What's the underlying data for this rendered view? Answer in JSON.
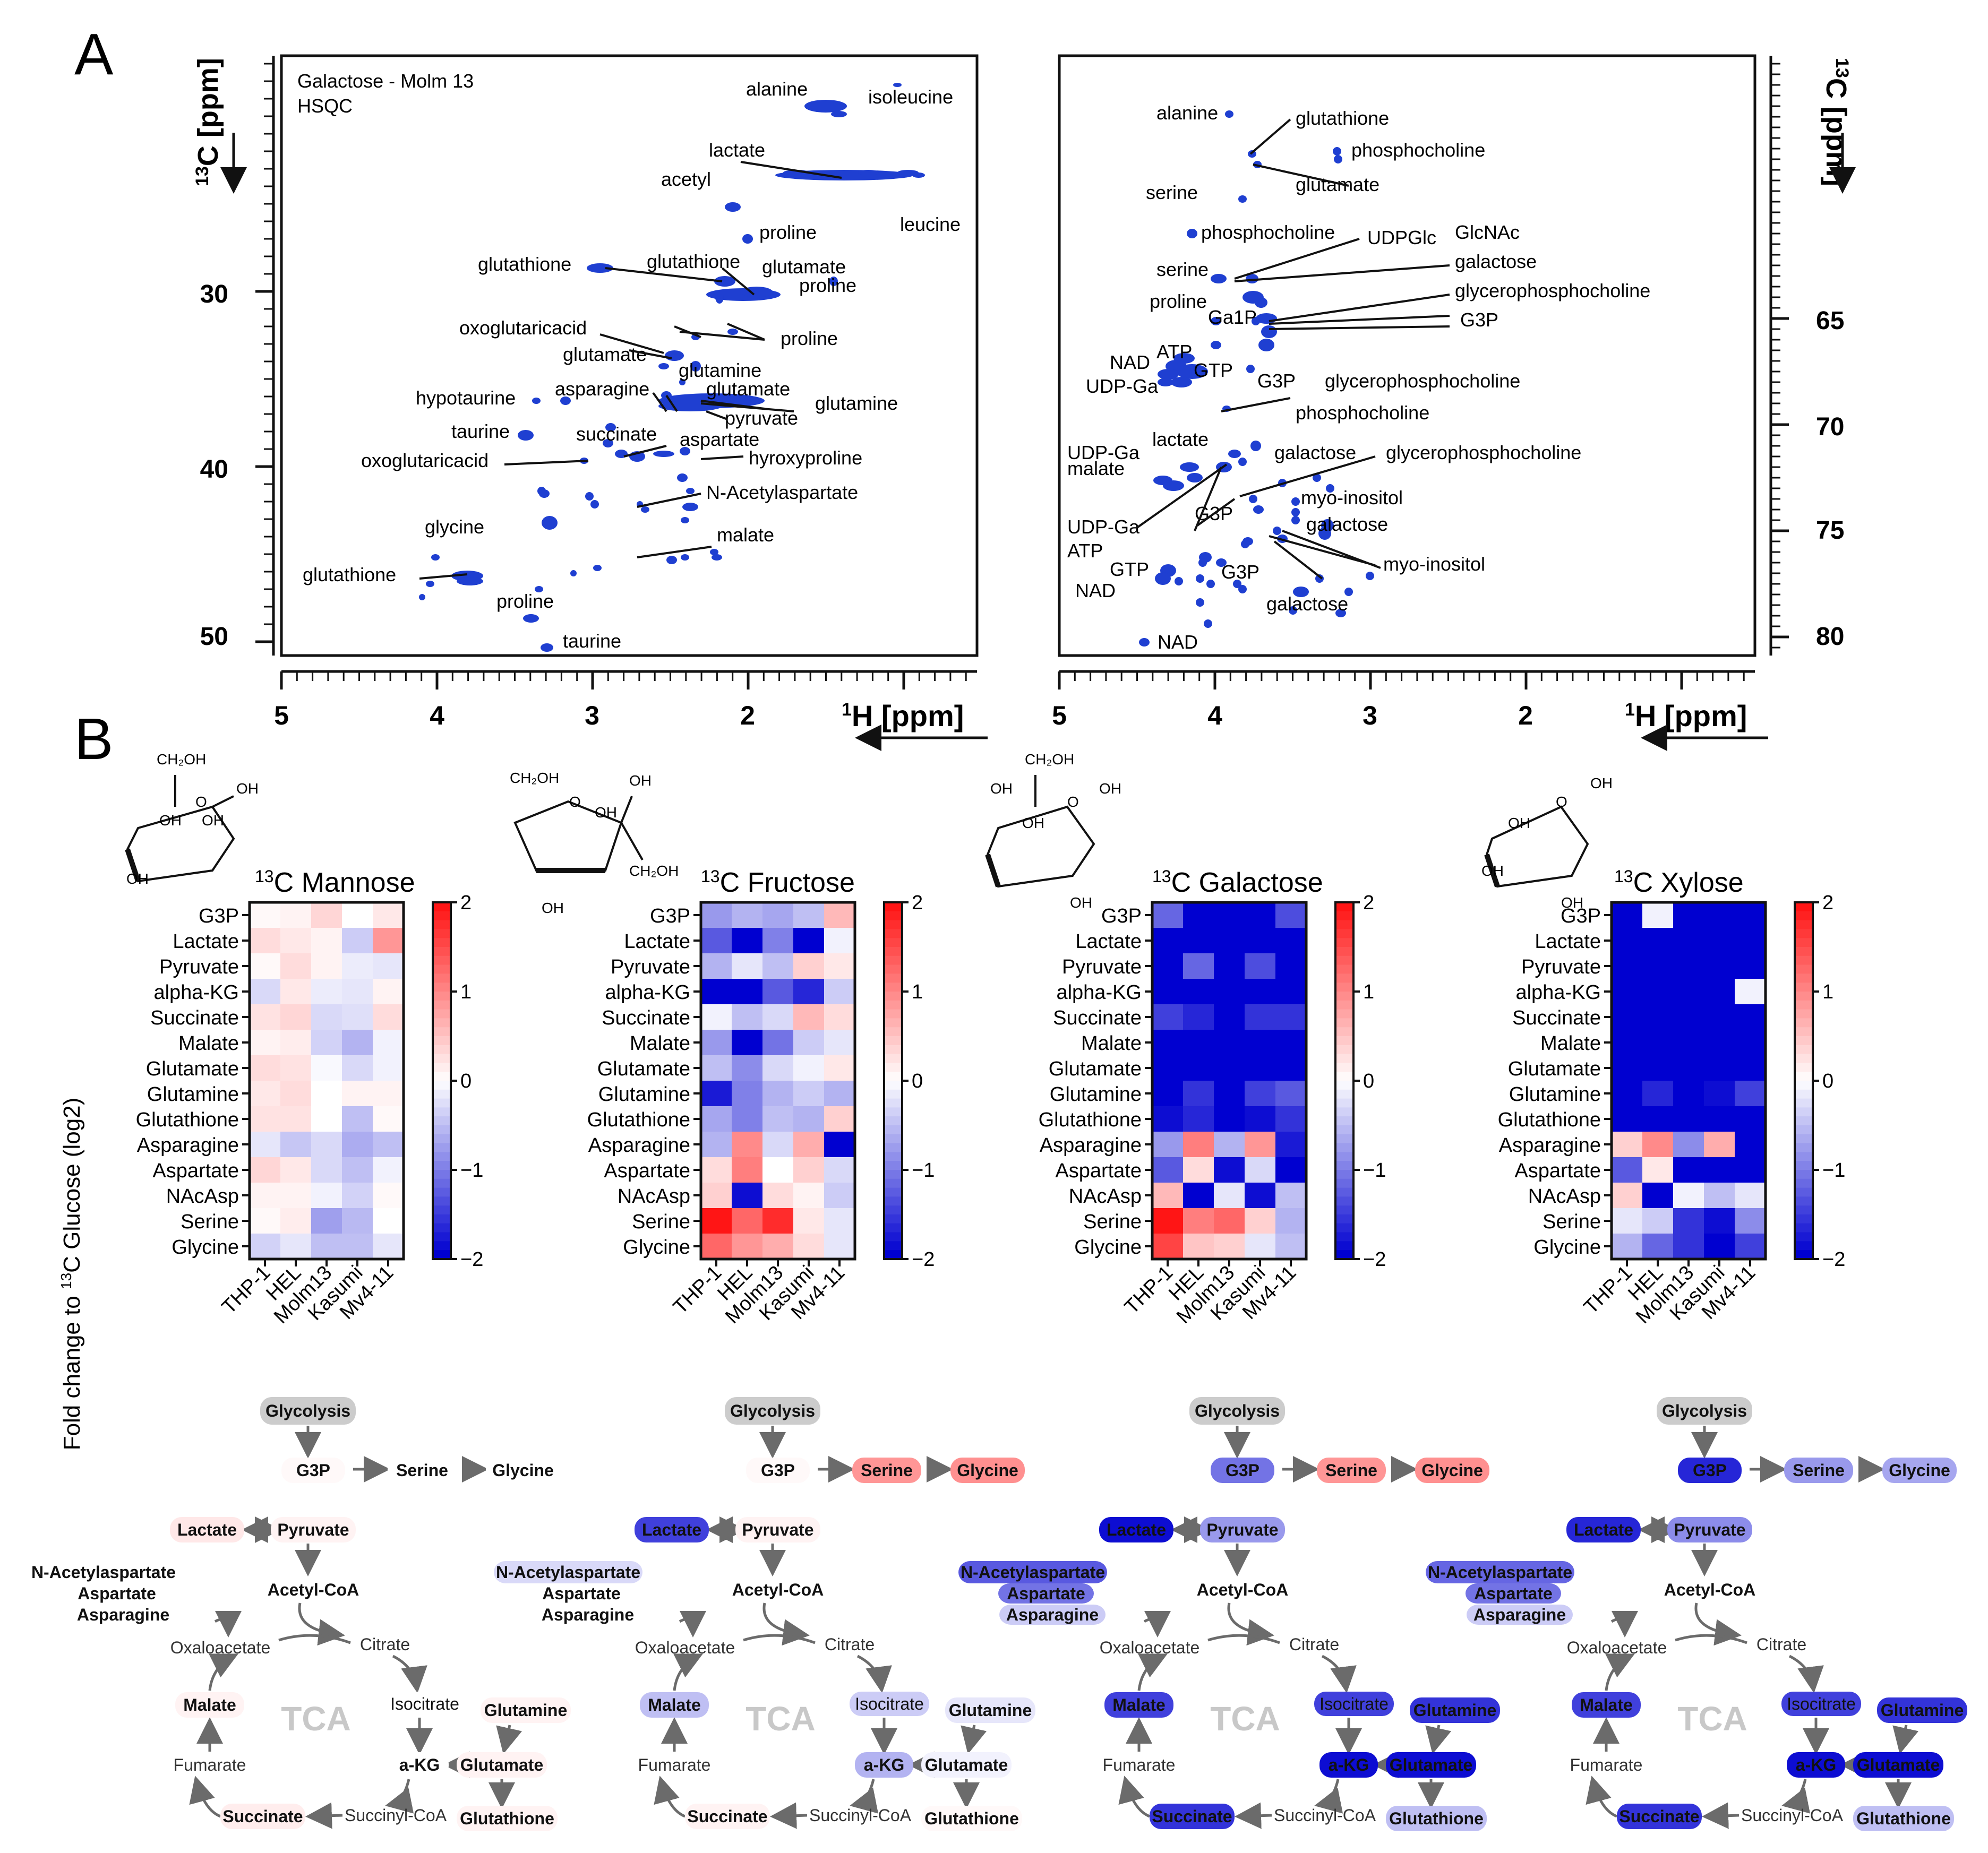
{
  "panel_a": {
    "letter": "A",
    "spectra": [
      {
        "title_line1": "Galactose - Molm 13",
        "title_line2": "HSQC",
        "c_axis_label_sup": "13",
        "c_axis_label": "C [ppm]",
        "c_ticks": [
          "30",
          "40",
          "50"
        ],
        "h_axis_label_sup": "1",
        "h_axis_label": "H [ppm]",
        "h_ticks": [
          "5",
          "4",
          "3",
          "2"
        ],
        "labels": [
          "alanine",
          "isoleucine",
          "lactate",
          "acetyl",
          "leucine",
          "proline",
          "glutathione",
          "glutathione",
          "glutamate",
          "proline",
          "oxoglutaricacid",
          "proline",
          "glutamate",
          "glutamine",
          "asparagine",
          "glutamate",
          "hypotaurine",
          "glutamine",
          "pyruvate",
          "taurine",
          "succinate",
          "aspartate",
          "oxoglutaricacid",
          "hyroxyproline",
          "N-Acetylaspartate",
          "glycine",
          "malate",
          "glutathione",
          "proline",
          "taurine"
        ]
      },
      {
        "c_axis_label_sup": "13",
        "c_axis_label": "C [ppm]",
        "c_ticks": [
          "65",
          "70",
          "75",
          "80"
        ],
        "h_axis_label_sup": "1",
        "h_axis_label": "H [ppm]",
        "h_ticks": [
          "5",
          "4",
          "3",
          "2"
        ],
        "labels": [
          "alanine",
          "glutathione",
          "phosphocholine",
          "glutamate",
          "serine",
          "phosphocholine",
          "UDPGlc",
          "GlcNAc",
          "serine",
          "galactose",
          "glycerophosphocholine",
          "proline",
          "Ga1P",
          "G3P",
          "NAD",
          "ATP",
          "GTP",
          "UDP-Ga",
          "G3P",
          "glycerophosphocholine",
          "phosphocholine",
          "lactate",
          "UDP-Ga",
          "galactose",
          "glycerophosphocholine",
          "malate",
          "myo-inositol",
          "G3P",
          "UDP-Ga",
          "galactose",
          "ATP",
          "GTP",
          "myo-inositol",
          "G3P",
          "NAD",
          "galactose",
          "NAD"
        ]
      }
    ]
  },
  "panel_b": {
    "letter": "B",
    "y_axis_label_prefix": "Fold change to ",
    "y_axis_label_sup": "13",
    "y_axis_label_suffix": "C Glucose (log2)",
    "rows": [
      "G3P",
      "Lactate",
      "Pyruvate",
      "alpha-KG",
      "Succinate",
      "Malate",
      "Glutamate",
      "Glutamine",
      "Glutathione",
      "Asparagine",
      "Aspartate",
      "NAcAsp",
      "Serine",
      "Glycine"
    ],
    "columns": [
      "THP-1",
      "HEL",
      "Molm13",
      "Kasumi",
      "Mv4-11"
    ],
    "colorbar_ticks": [
      "2",
      "1",
      "0",
      "−1",
      "−2"
    ],
    "sugar_chem_labels": {
      "ch2oh": "CH₂OH",
      "oh": "OH",
      "o": "O"
    }
  },
  "pathway": {
    "nodes": {
      "glycolysis": "Glycolysis",
      "g3p": "G3P",
      "serine": "Serine",
      "glycine": "Glycine",
      "lactate": "Lactate",
      "pyruvate": "Pyruvate",
      "acetylcoa": "Acetyl-CoA",
      "nacasp": "N-Acetylaspartate",
      "aspartate": "Aspartate",
      "asparagine": "Asparagine",
      "oxaloacetate": "Oxaloacetate",
      "citrate": "Citrate",
      "malate": "Malate",
      "isocitrate": "Isocitrate",
      "glutamine": "Glutamine",
      "akg": "a-KG",
      "glutamate": "Glutamate",
      "fumarate": "Fumarate",
      "succinate": "Succinate",
      "succinylcoa": "Succinyl-CoA",
      "glutathione": "Glutathione",
      "tca": "TCA"
    }
  },
  "chart_data": [
    {
      "type": "heatmap",
      "title_sup": "13",
      "title": "C Mannose",
      "categories_y": [
        "G3P",
        "Lactate",
        "Pyruvate",
        "alpha-KG",
        "Succinate",
        "Malate",
        "Glutamate",
        "Glutamine",
        "Glutathione",
        "Asparagine",
        "Aspartate",
        "NAcAsp",
        "Serine",
        "Glycine"
      ],
      "categories_x": [
        "THP-1",
        "HEL",
        "Molm13",
        "Kasumi",
        "Mv4-11"
      ],
      "zlim": [
        -2,
        2
      ],
      "values": [
        [
          0.05,
          0.1,
          0.35,
          0.0,
          0.2
        ],
        [
          0.3,
          0.2,
          0.1,
          -0.4,
          0.9
        ],
        [
          0.05,
          0.3,
          0.1,
          -0.15,
          -0.2
        ],
        [
          -0.3,
          0.2,
          -0.15,
          -0.2,
          0.1
        ],
        [
          0.25,
          0.35,
          -0.3,
          -0.25,
          0.3
        ],
        [
          0.1,
          0.15,
          -0.35,
          -0.6,
          -0.1
        ],
        [
          0.3,
          0.25,
          -0.05,
          -0.3,
          -0.1
        ],
        [
          0.2,
          0.3,
          0.0,
          0.1,
          0.1
        ],
        [
          0.25,
          0.25,
          0.0,
          -0.5,
          0.05
        ],
        [
          -0.2,
          -0.45,
          -0.3,
          -0.65,
          -0.5
        ],
        [
          0.35,
          0.2,
          -0.3,
          -0.5,
          -0.1
        ],
        [
          0.1,
          0.1,
          -0.1,
          -0.35,
          0.05
        ],
        [
          0.05,
          0.15,
          -0.75,
          -0.55,
          0.0
        ],
        [
          -0.35,
          -0.2,
          -0.5,
          -0.5,
          -0.2
        ]
      ]
    },
    {
      "type": "heatmap",
      "title_sup": "13",
      "title": "C Fructose",
      "categories_y": [
        "G3P",
        "Lactate",
        "Pyruvate",
        "alpha-KG",
        "Succinate",
        "Malate",
        "Glutamate",
        "Glutamine",
        "Glutathione",
        "Asparagine",
        "Aspartate",
        "NAcAsp",
        "Serine",
        "Glycine"
      ],
      "categories_x": [
        "THP-1",
        "HEL",
        "Molm13",
        "Kasumi",
        "Mv4-11"
      ],
      "zlim": [
        -2,
        2
      ],
      "values": [
        [
          -0.8,
          -0.6,
          -0.7,
          -0.5,
          0.6
        ],
        [
          -1.3,
          -2.0,
          -1.0,
          -2.0,
          -0.1
        ],
        [
          -0.6,
          -0.2,
          -0.5,
          0.4,
          0.2
        ],
        [
          -2.0,
          -2.0,
          -1.3,
          -1.7,
          -0.4
        ],
        [
          -0.1,
          -0.5,
          -0.3,
          0.6,
          0.3
        ],
        [
          -0.8,
          -2.0,
          -1.1,
          -0.4,
          -0.2
        ],
        [
          -0.5,
          -0.9,
          -0.3,
          -0.1,
          0.2
        ],
        [
          -1.8,
          -1.0,
          -0.6,
          -0.4,
          -0.6
        ],
        [
          -0.7,
          -1.0,
          -0.5,
          -0.6,
          0.4
        ],
        [
          -0.6,
          1.0,
          -0.3,
          0.7,
          -2.0
        ],
        [
          0.3,
          1.1,
          0.0,
          0.4,
          -0.3
        ],
        [
          0.4,
          -1.9,
          0.3,
          0.1,
          -0.4
        ],
        [
          2.0,
          1.3,
          1.8,
          0.2,
          -0.2
        ],
        [
          1.3,
          0.9,
          0.7,
          0.3,
          -0.2
        ]
      ]
    },
    {
      "type": "heatmap",
      "title_sup": "13",
      "title": "C Galactose",
      "categories_y": [
        "G3P",
        "Lactate",
        "Pyruvate",
        "alpha-KG",
        "Succinate",
        "Malate",
        "Glutamate",
        "Glutamine",
        "Glutathione",
        "Asparagine",
        "Aspartate",
        "NAcAsp",
        "Serine",
        "Glycine"
      ],
      "categories_x": [
        "THP-1",
        "HEL",
        "Molm13",
        "Kasumi",
        "Mv4-11"
      ],
      "zlim": [
        -2,
        2
      ],
      "values": [
        [
          -1.2,
          -2.0,
          -2.0,
          -2.0,
          -1.4
        ],
        [
          -2.0,
          -2.0,
          -2.0,
          -2.0,
          -2.0
        ],
        [
          -2.0,
          -1.2,
          -2.0,
          -1.4,
          -2.0
        ],
        [
          -2.0,
          -2.0,
          -2.0,
          -2.0,
          -2.0
        ],
        [
          -1.5,
          -1.7,
          -2.0,
          -1.6,
          -1.6
        ],
        [
          -2.0,
          -2.0,
          -2.0,
          -2.0,
          -2.0
        ],
        [
          -2.0,
          -2.0,
          -2.0,
          -2.0,
          -2.0
        ],
        [
          -2.0,
          -1.6,
          -2.0,
          -1.5,
          -1.3
        ],
        [
          -1.9,
          -1.7,
          -2.0,
          -1.9,
          -1.6
        ],
        [
          -0.8,
          1.1,
          -0.6,
          0.9,
          -1.8
        ],
        [
          -1.3,
          0.3,
          -1.9,
          -0.3,
          -2.0
        ],
        [
          0.6,
          -2.0,
          -0.2,
          -1.9,
          -0.5
        ],
        [
          2.0,
          1.1,
          1.3,
          0.4,
          -0.6
        ],
        [
          1.6,
          0.5,
          0.4,
          -0.2,
          -0.5
        ]
      ]
    },
    {
      "type": "heatmap",
      "title_sup": "13",
      "title": "C Xylose",
      "categories_y": [
        "G3P",
        "Lactate",
        "Pyruvate",
        "alpha-KG",
        "Succinate",
        "Malate",
        "Glutamate",
        "Glutamine",
        "Glutathione",
        "Asparagine",
        "Aspartate",
        "NAcAsp",
        "Serine",
        "Glycine"
      ],
      "categories_x": [
        "THP-1",
        "HEL",
        "Molm13",
        "Kasumi",
        "Mv4-11"
      ],
      "zlim": [
        -2,
        2
      ],
      "values": [
        [
          -2.0,
          -0.1,
          -2.0,
          -2.0,
          -2.0
        ],
        [
          -2.0,
          -2.0,
          -2.0,
          -2.0,
          -2.0
        ],
        [
          -2.0,
          -2.0,
          -2.0,
          -2.0,
          -2.0
        ],
        [
          -2.0,
          -2.0,
          -2.0,
          -2.0,
          -0.1
        ],
        [
          -2.0,
          -2.0,
          -2.0,
          -2.0,
          -2.0
        ],
        [
          -2.0,
          -2.0,
          -2.0,
          -2.0,
          -2.0
        ],
        [
          -2.0,
          -2.0,
          -2.0,
          -2.0,
          -2.0
        ],
        [
          -2.0,
          -1.7,
          -2.0,
          -1.9,
          -1.5
        ],
        [
          -2.0,
          -2.0,
          -2.0,
          -2.0,
          -2.0
        ],
        [
          0.4,
          1.0,
          -0.9,
          0.7,
          -2.0
        ],
        [
          -1.3,
          0.2,
          -2.0,
          -2.0,
          -2.0
        ],
        [
          0.4,
          -2.0,
          -0.1,
          -0.5,
          -0.2
        ],
        [
          -0.2,
          -0.4,
          -1.6,
          -1.9,
          -0.9
        ],
        [
          -0.6,
          -1.2,
          -1.6,
          -2.0,
          -1.5
        ]
      ]
    }
  ],
  "colors": {
    "spot": "#1f3fd1",
    "heat_low": "#0000d0",
    "heat_mid": "#ffffff",
    "heat_high": "#ff1515",
    "pathway_arrow": "#6b6b6b",
    "glycolysis_box": "#cccccc",
    "tca_text": "#c8c8c8",
    "pathway_text": "#111111"
  },
  "pathway_values": [
    {
      "g3p": 0.05,
      "serine": 0.0,
      "glycine": 0.0,
      "lactate": 0.2,
      "pyruvate": 0.1,
      "nacasp": 0.0,
      "aspartate": 0.0,
      "asparagine": 0.0,
      "malate": 0.1,
      "isocitrate": 0.0,
      "glutamine": 0.1,
      "akg": 0.0,
      "glutamate": 0.1,
      "succinate": 0.15,
      "glutathione": 0.1
    },
    {
      "g3p": 0.05,
      "serine": 0.9,
      "glycine": 0.95,
      "lactate": -1.5,
      "pyruvate": 0.1,
      "nacasp": -0.3,
      "aspartate": 0.0,
      "asparagine": 0.0,
      "malate": -0.5,
      "isocitrate": -0.4,
      "glutamine": -0.2,
      "akg": -0.6,
      "glutamate": -0.1,
      "succinate": 0.1,
      "glutathione": 0.05
    },
    {
      "g3p": -1.1,
      "serine": 0.9,
      "glycine": 0.95,
      "lactate": -1.9,
      "pyruvate": -0.8,
      "nacasp": -1.3,
      "aspartate": -1.1,
      "asparagine": -0.4,
      "malate": -1.5,
      "isocitrate": -1.5,
      "glutamine": -1.6,
      "akg": -1.9,
      "glutamate": -1.9,
      "succinate": -1.6,
      "glutathione": -0.5
    },
    {
      "g3p": -1.7,
      "serine": -0.8,
      "glycine": -0.7,
      "lactate": -1.7,
      "pyruvate": -0.9,
      "nacasp": -1.2,
      "aspartate": -1.1,
      "asparagine": -0.4,
      "malate": -1.5,
      "isocitrate": -1.5,
      "glutamine": -1.6,
      "akg": -1.9,
      "glutamate": -1.9,
      "succinate": -1.6,
      "glutathione": -0.5
    }
  ]
}
